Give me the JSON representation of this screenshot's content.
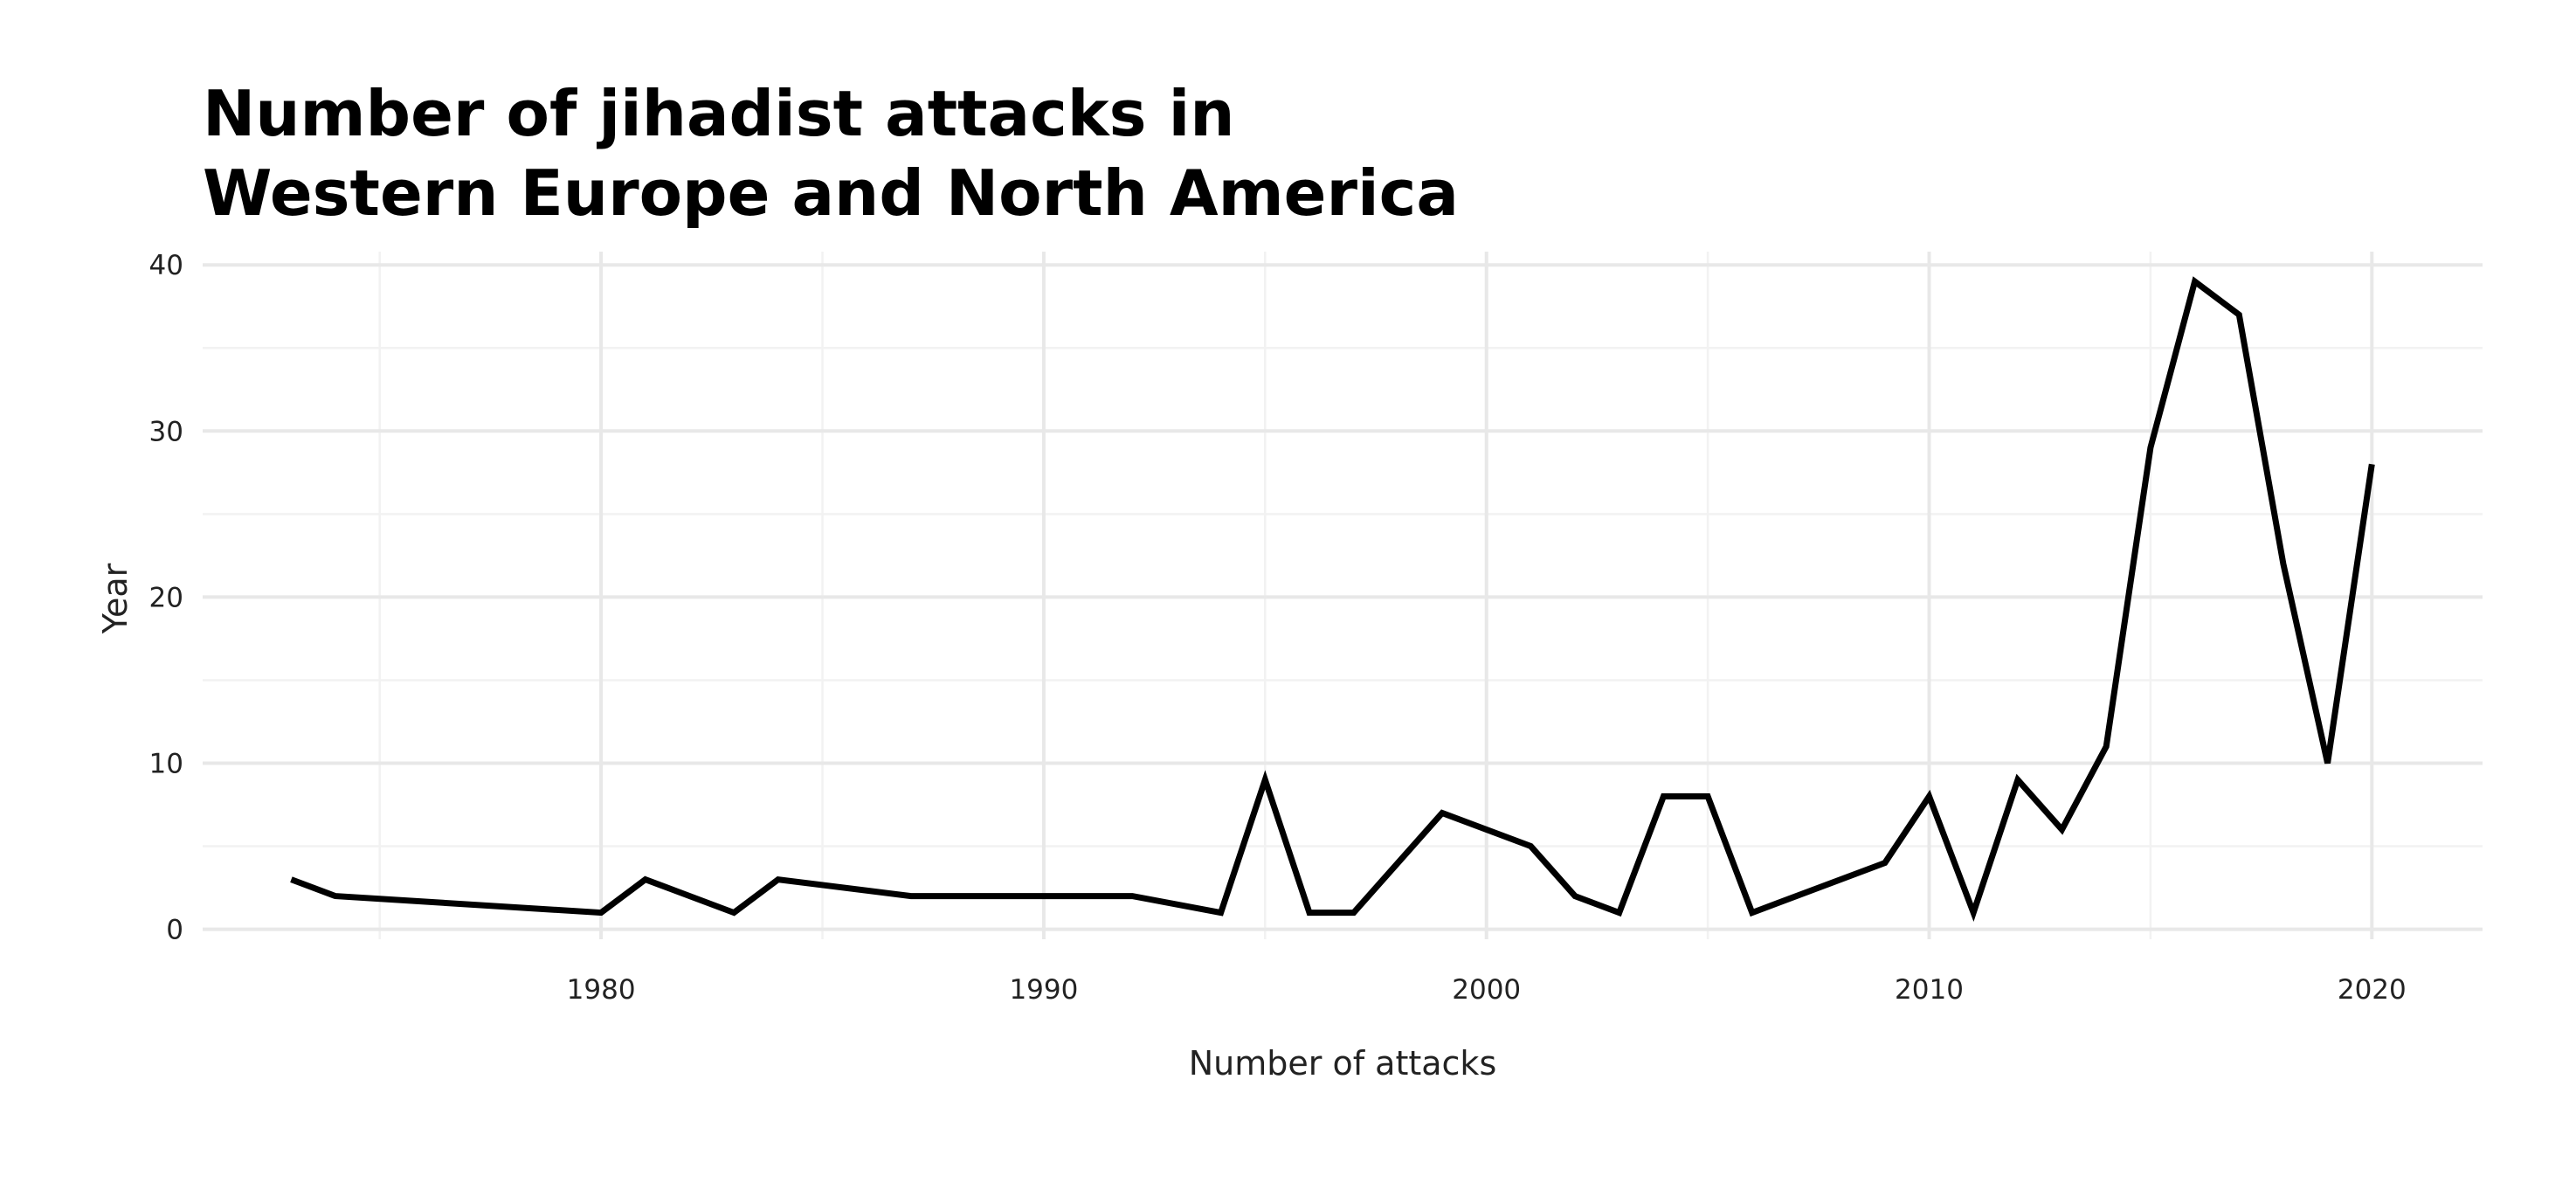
{
  "chart_data": {
    "type": "line",
    "title_lines": [
      "Number of jihadist attacks in",
      "Western Europe and North America"
    ],
    "xlabel": "Number of attacks",
    "ylabel": "Year",
    "xlim": [
      1971,
      2022.5
    ],
    "ylim": [
      -0.6,
      40.8
    ],
    "x_major_ticks": [
      1980,
      1990,
      2000,
      2010,
      2020
    ],
    "x_minor_ticks": [
      1975,
      1985,
      1995,
      2005,
      2015
    ],
    "y_major_ticks": [
      0,
      10,
      20,
      30,
      40
    ],
    "y_minor_ticks": [
      5,
      15,
      25,
      35
    ],
    "grid": true,
    "legend": "none",
    "line_color": "#000000",
    "series": [
      {
        "x": [
          1973,
          1974,
          1980,
          1981,
          1983,
          1984,
          1987,
          1992,
          1994,
          1995,
          1996,
          1997,
          1999,
          2001,
          2002,
          2003,
          2004,
          2005,
          2006,
          2009,
          2010,
          2011,
          2012,
          2013,
          2014,
          2015,
          2016,
          2017,
          2018,
          2019,
          2020
        ],
        "y": [
          3,
          2,
          1,
          3,
          1,
          3,
          2,
          2,
          1,
          9,
          1,
          1,
          7,
          5,
          2,
          1,
          8,
          8,
          1,
          4,
          8,
          1,
          9,
          6,
          11,
          29,
          39,
          37,
          22,
          10,
          28
        ]
      }
    ]
  }
}
